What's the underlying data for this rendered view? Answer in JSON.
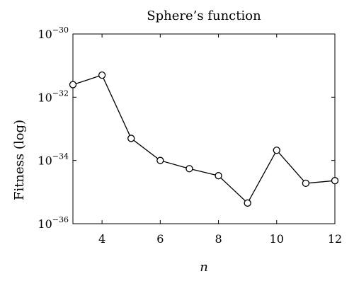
{
  "chart_data": {
    "type": "line",
    "title": "Sphere’s function",
    "xlabel": "n",
    "ylabel": "Fitness (log)",
    "x": [
      3,
      4,
      5,
      6,
      7,
      8,
      9,
      10,
      11,
      12
    ],
    "series": [
      {
        "values": [
          2.5e-32,
          5e-32,
          5e-34,
          1e-34,
          5.5e-35,
          3.3e-35,
          4.5e-36,
          2.1e-34,
          1.9e-35,
          2.3e-35
        ]
      }
    ],
    "xlim": [
      3,
      12
    ],
    "ylim": [
      1e-36,
      1e-30
    ],
    "yscale": "log",
    "xticks": [
      4,
      6,
      8,
      10,
      12
    ],
    "xtick_labels": [
      "4",
      "6",
      "8",
      "10",
      "12"
    ],
    "yticks": [
      1e-36,
      1e-34,
      1e-32,
      1e-30
    ],
    "ytick_labels": [
      {
        "base": "10",
        "exp": "−36"
      },
      {
        "base": "10",
        "exp": "−34"
      },
      {
        "base": "10",
        "exp": "−32"
      },
      {
        "base": "10",
        "exp": "−30"
      }
    ],
    "marker": "open-circle",
    "line_color": "#000000",
    "grid": false,
    "legend": "none"
  }
}
